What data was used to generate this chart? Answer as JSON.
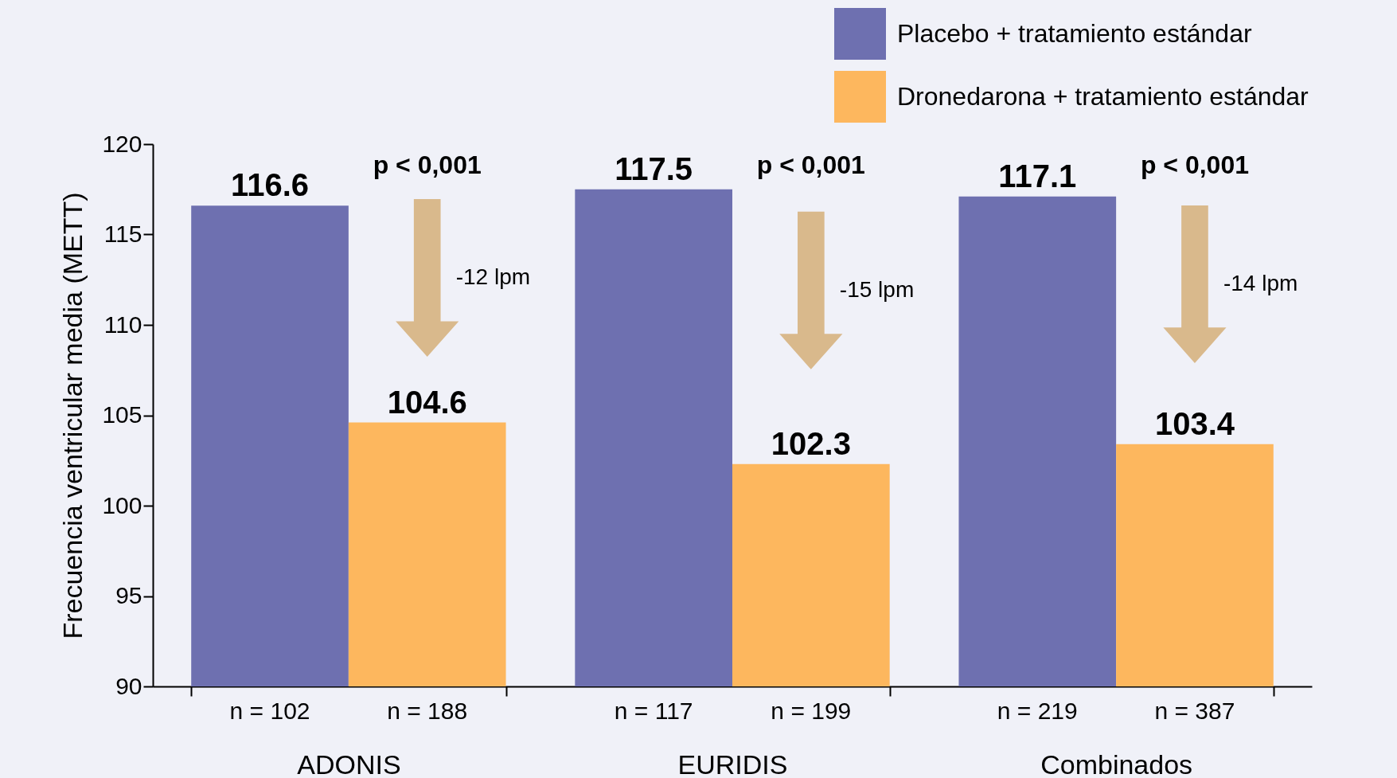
{
  "chart_data": {
    "type": "bar",
    "ylabel": "Frecuencia ventricular media (METT)",
    "categories": [
      "ADONIS",
      "EURIDIS",
      "Combinados"
    ],
    "series": [
      {
        "name": "Placebo + tratamiento estándar",
        "color": "#6e70b0",
        "values": [
          116.6,
          117.5,
          117.1
        ]
      },
      {
        "name": "Dronedarona + tratamiento estándar",
        "color": "#fdb75e",
        "values": [
          104.6,
          102.3,
          103.4
        ]
      }
    ],
    "ylim": [
      90,
      120
    ],
    "yticks": [
      90,
      95,
      100,
      105,
      110,
      115,
      120
    ],
    "grid": false,
    "legend": "top right",
    "data_labels": true,
    "annotations": [
      "n = 102",
      "n = 188",
      "n = 117",
      "n = 199",
      "n = 219",
      "n = 387",
      "p < 0,001",
      "p < 0,001",
      "p < 0,001",
      "-12 lpm",
      "-15 lpm",
      "-14 lpm"
    ]
  }
}
